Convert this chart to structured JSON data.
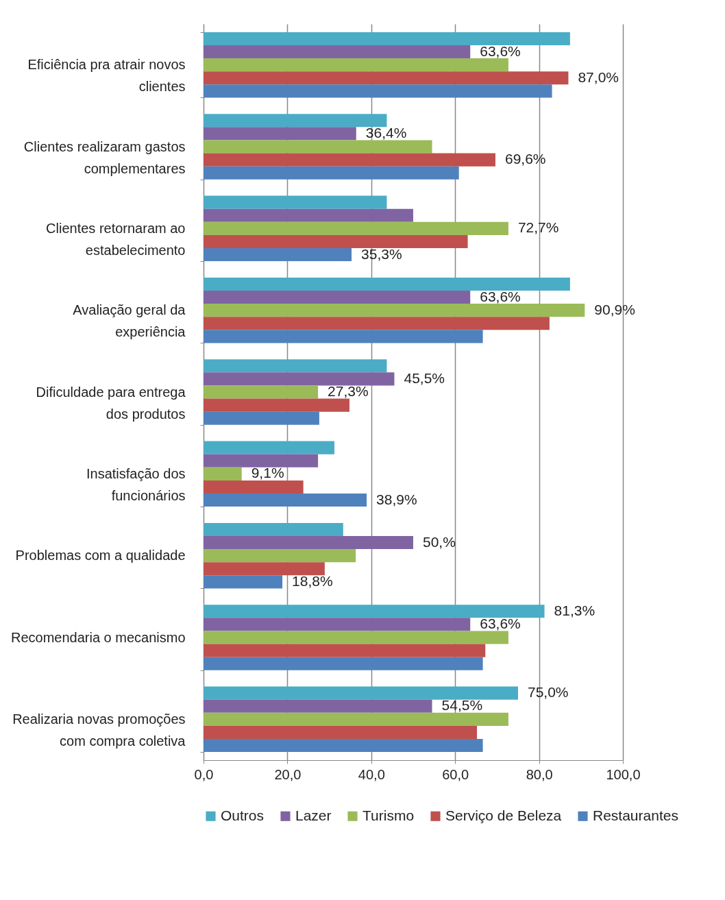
{
  "chart_data": {
    "type": "bar",
    "orientation": "horizontal",
    "categories": [
      "Eficiência pra atrair novos clientes",
      "Clientes realizaram gastos complementares",
      "Clientes retornaram ao estabelecimento",
      "Avaliação geral da experiência",
      "Dificuldade para entrega dos produtos",
      "Insatisfação dos funcionários",
      "Problemas com a qualidade",
      "Recomendaria o mecanismo",
      "Realizaria novas promoções com compra coletiva"
    ],
    "series": [
      {
        "name": "Outros",
        "color": "#4bacc6",
        "values": [
          87.4,
          43.7,
          43.7,
          87.4,
          43.7,
          31.2,
          33.3,
          81.3,
          75.0
        ],
        "value_labels": [
          null,
          null,
          null,
          null,
          null,
          null,
          null,
          "81,3%",
          "75,0%"
        ]
      },
      {
        "name": "Lazer",
        "color": "#8064a2",
        "values": [
          63.6,
          36.4,
          50.0,
          63.6,
          45.5,
          27.3,
          50.0,
          63.6,
          54.5
        ],
        "value_labels": [
          "63,6%",
          "36,4%",
          null,
          "63,6%",
          "45,5%",
          null,
          "50,%",
          "63,6%",
          "54,5%"
        ]
      },
      {
        "name": "Turismo",
        "color": "#9bbb59",
        "values": [
          72.7,
          54.5,
          72.7,
          90.9,
          27.3,
          9.1,
          36.3,
          72.7,
          72.7
        ],
        "value_labels": [
          null,
          null,
          "72,7%",
          "90,9%",
          "27,3%",
          "9,1%",
          null,
          null,
          null
        ]
      },
      {
        "name": "Serviço de Beleza",
        "color": "#c0504d",
        "values": [
          87.0,
          69.6,
          63.0,
          82.5,
          34.8,
          23.8,
          28.9,
          67.2,
          65.2
        ],
        "value_labels": [
          "87,0%",
          "69,6%",
          null,
          null,
          null,
          null,
          null,
          null,
          null
        ]
      },
      {
        "name": "Restaurantes",
        "color": "#4f81bd",
        "values": [
          83.1,
          60.9,
          35.3,
          66.6,
          27.6,
          38.9,
          18.8,
          66.6,
          66.6
        ],
        "value_labels": [
          null,
          null,
          "35,3%",
          null,
          null,
          "38,9%",
          "18,8%",
          null,
          null
        ]
      }
    ],
    "xlim": [
      0,
      100
    ],
    "xticks": [
      {
        "value": 0,
        "label": "0,0"
      },
      {
        "value": 20,
        "label": "20,0"
      },
      {
        "value": 40,
        "label": "40,0"
      },
      {
        "value": 60,
        "label": "60,0"
      },
      {
        "value": 80,
        "label": "80,0"
      },
      {
        "value": 100,
        "label": "100,0"
      }
    ],
    "grid": "x",
    "legend": "bottom"
  }
}
